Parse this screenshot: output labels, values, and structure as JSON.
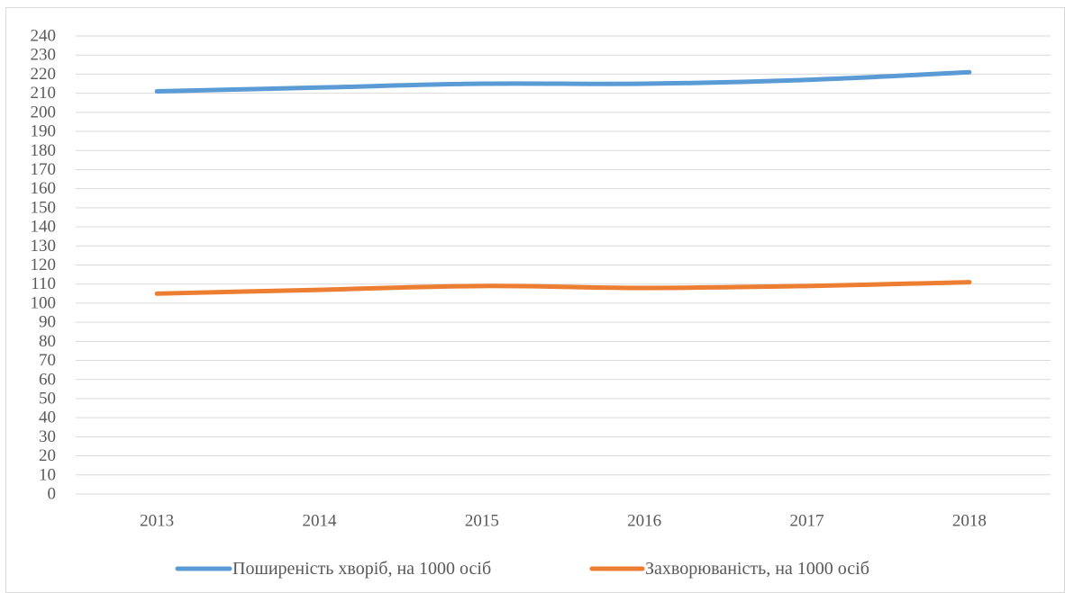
{
  "chart_data": {
    "type": "line",
    "title": "",
    "xlabel": "",
    "ylabel": "",
    "categories": [
      "2013",
      "2014",
      "2015",
      "2016",
      "2017",
      "2018"
    ],
    "ylim": [
      0,
      240
    ],
    "ytick_step": 10,
    "grid": true,
    "legend_position": "bottom",
    "series": [
      {
        "name": "Поширеність хворіб, на 1000 осіб",
        "color": "#5b9bd5",
        "values": [
          211,
          213,
          215,
          215,
          217,
          221
        ]
      },
      {
        "name": "Захворюваність, на 1000 осіб",
        "color": "#ed7d31",
        "values": [
          105,
          107,
          109,
          108,
          109,
          111
        ]
      }
    ]
  }
}
